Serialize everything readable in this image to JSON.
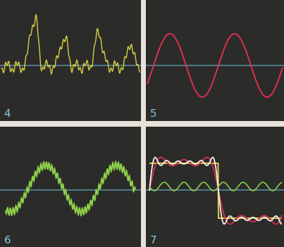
{
  "panels": [
    {
      "label": "4"
    },
    {
      "label": "5"
    },
    {
      "label": "6"
    },
    {
      "label": "7"
    }
  ]
}
